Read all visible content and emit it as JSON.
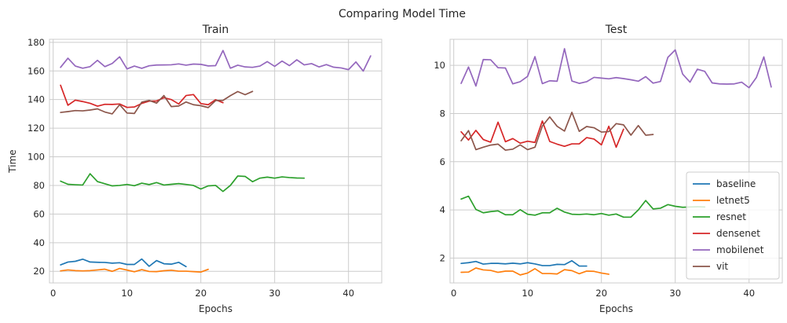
{
  "suptitle": "Comparing Model Time",
  "legend_location": "lower-right",
  "colors": {
    "baseline": "#1f77b4",
    "letnet5": "#ff7f0e",
    "resnet": "#2ca02c",
    "densenet": "#d62728",
    "mobilenet": "#9467bd",
    "vit": "#8c564b",
    "grid": "#cccccc",
    "spine": "#cccccc",
    "legend_frame": "#cccccc"
  },
  "chart_data": [
    {
      "type": "line",
      "title": "Train",
      "xlabel": "Epochs",
      "ylabel": "Time",
      "xlim": [
        -0.5,
        44.5
      ],
      "ylim": [
        11.9,
        182.1
      ],
      "xticks": [
        0,
        10,
        20,
        30,
        40
      ],
      "yticks": [
        20,
        40,
        60,
        80,
        100,
        120,
        140,
        160,
        180
      ],
      "grid": true,
      "legend": false,
      "series": [
        {
          "name": "baseline",
          "x": [
            1,
            2,
            3,
            4,
            5,
            6,
            7,
            8,
            9,
            10,
            11,
            12,
            13,
            14,
            15,
            16,
            17,
            18
          ],
          "y": [
            24.5,
            26.5,
            27,
            28.5,
            26.5,
            26.3,
            26.2,
            25.7,
            26,
            24.8,
            24.8,
            28.6,
            23.5,
            27.5,
            25.3,
            25,
            26.3,
            23.3
          ]
        },
        {
          "name": "letnet5",
          "x": [
            1,
            2,
            3,
            4,
            5,
            6,
            7,
            8,
            9,
            10,
            11,
            12,
            13,
            14,
            15,
            16,
            17,
            18,
            19,
            20,
            21
          ],
          "y": [
            20.3,
            21,
            20.5,
            20.3,
            20.5,
            21,
            21.5,
            20,
            22,
            20.9,
            19.7,
            21.2,
            19.9,
            19.8,
            20.4,
            20.8,
            20.1,
            20.1,
            19.8,
            19.5,
            21.4
          ]
        },
        {
          "name": "resnet",
          "x": [
            1,
            2,
            3,
            4,
            5,
            6,
            7,
            8,
            9,
            10,
            11,
            12,
            13,
            14,
            15,
            16,
            17,
            18,
            19,
            20,
            21,
            22,
            23,
            24,
            25,
            26,
            27,
            28,
            29,
            30,
            31,
            32,
            33,
            34
          ],
          "y": [
            83,
            80.8,
            80.5,
            80.3,
            88.2,
            82.7,
            81.2,
            79.7,
            80,
            80.7,
            79.8,
            81.6,
            80.6,
            82,
            80.3,
            80.8,
            81.3,
            80.7,
            80,
            77.5,
            79.7,
            80,
            75.8,
            80,
            86.6,
            86.3,
            82.6,
            85.1,
            85.8,
            85.1,
            86,
            85.5,
            85.2,
            85.1
          ]
        },
        {
          "name": "densenet",
          "x": [
            1,
            2,
            3,
            4,
            5,
            6,
            7,
            8,
            9,
            10,
            11,
            12,
            13,
            14,
            15,
            16,
            17,
            18,
            19,
            20,
            21,
            22,
            23
          ],
          "y": [
            150,
            136,
            139.6,
            138.6,
            137.4,
            135.4,
            136.7,
            136.6,
            136.9,
            134.5,
            134.8,
            137.3,
            138.9,
            139,
            141.3,
            140,
            136.9,
            142.8,
            143.5,
            137.2,
            136.4,
            139.9,
            137.8
          ]
        },
        {
          "name": "mobilenet",
          "x": [
            1,
            2,
            3,
            4,
            5,
            6,
            7,
            8,
            9,
            10,
            11,
            12,
            13,
            14,
            15,
            16,
            17,
            18,
            19,
            20,
            21,
            22,
            23,
            24,
            25,
            26,
            27,
            28,
            29,
            30,
            31,
            32,
            33,
            34,
            35,
            36,
            37,
            38,
            39,
            40,
            41,
            42,
            43
          ],
          "y": [
            162.5,
            168.9,
            163.4,
            161.9,
            163,
            167.4,
            163,
            165.2,
            169.9,
            161.4,
            163.4,
            161.8,
            163.6,
            164.1,
            164.2,
            164.3,
            164.9,
            164,
            164.8,
            164.6,
            163.5,
            163.7,
            174.3,
            161.9,
            164,
            162.8,
            162.5,
            163.4,
            166.5,
            163.2,
            166.9,
            163.7,
            167.8,
            164.2,
            165.1,
            162.8,
            164.4,
            162.6,
            162.1,
            160.9,
            166.3,
            159.9,
            170.5
          ]
        },
        {
          "name": "vit",
          "x": [
            1,
            2,
            3,
            4,
            5,
            6,
            7,
            8,
            9,
            10,
            11,
            12,
            13,
            14,
            15,
            16,
            17,
            18,
            19,
            20,
            21,
            22,
            23,
            24,
            25,
            26,
            27
          ],
          "y": [
            131,
            131.6,
            132.3,
            132.1,
            132.7,
            133.5,
            131.3,
            130,
            136.4,
            130.6,
            130.3,
            138.2,
            139.4,
            137.5,
            142.8,
            135.1,
            135.5,
            138.3,
            136.4,
            135.7,
            134.4,
            139.3,
            139.4,
            142.7,
            145.6,
            143.4,
            145.7
          ]
        }
      ]
    },
    {
      "type": "line",
      "title": "Test",
      "xlabel": "Epochs",
      "ylabel": "",
      "xlim": [
        -0.5,
        44.5
      ],
      "ylim": [
        0.97,
        11.08
      ],
      "xticks": [
        0,
        10,
        20,
        30,
        40
      ],
      "yticks": [
        2,
        4,
        6,
        8,
        10
      ],
      "grid": true,
      "legend": true,
      "series": [
        {
          "name": "baseline",
          "x": [
            1,
            2,
            3,
            4,
            5,
            6,
            7,
            8,
            9,
            10,
            11,
            12,
            13,
            14,
            15,
            16,
            17,
            18
          ],
          "y": [
            1.78,
            1.81,
            1.86,
            1.75,
            1.78,
            1.78,
            1.76,
            1.79,
            1.76,
            1.81,
            1.76,
            1.69,
            1.69,
            1.74,
            1.73,
            1.89,
            1.67,
            1.67
          ]
        },
        {
          "name": "letnet5",
          "x": [
            1,
            2,
            3,
            4,
            5,
            6,
            7,
            8,
            9,
            10,
            11,
            12,
            13,
            14,
            15,
            16,
            17,
            18,
            19,
            20,
            21
          ],
          "y": [
            1.41,
            1.42,
            1.59,
            1.51,
            1.49,
            1.41,
            1.46,
            1.46,
            1.3,
            1.38,
            1.56,
            1.36,
            1.36,
            1.34,
            1.52,
            1.48,
            1.35,
            1.46,
            1.45,
            1.38,
            1.33
          ]
        },
        {
          "name": "resnet",
          "x": [
            1,
            2,
            3,
            4,
            5,
            6,
            7,
            8,
            9,
            10,
            11,
            12,
            13,
            14,
            15,
            16,
            17,
            18,
            19,
            20,
            21,
            22,
            23,
            24,
            25,
            26,
            27,
            28,
            29,
            30,
            31,
            32,
            33,
            34
          ],
          "y": [
            4.45,
            4.57,
            4.02,
            3.88,
            3.93,
            3.96,
            3.8,
            3.8,
            4.01,
            3.82,
            3.78,
            3.88,
            3.88,
            4.07,
            3.91,
            3.82,
            3.81,
            3.83,
            3.8,
            3.85,
            3.78,
            3.83,
            3.7,
            3.7,
            4.0,
            4.39,
            4.04,
            4.07,
            4.22,
            4.15,
            4.11,
            4.12,
            4.13,
            4.12
          ]
        },
        {
          "name": "densenet",
          "x": [
            1,
            2,
            3,
            4,
            5,
            6,
            7,
            8,
            9,
            10,
            11,
            12,
            13,
            14,
            15,
            16,
            17,
            18,
            19,
            20,
            21,
            22,
            23
          ],
          "y": [
            7.24,
            6.9,
            7.3,
            6.92,
            6.81,
            7.64,
            6.83,
            6.96,
            6.77,
            6.85,
            6.8,
            7.69,
            6.84,
            6.73,
            6.64,
            6.74,
            6.74,
            7.0,
            6.94,
            6.7,
            7.47,
            6.6,
            7.35
          ]
        },
        {
          "name": "mobilenet",
          "x": [
            1,
            2,
            3,
            4,
            5,
            6,
            7,
            8,
            9,
            10,
            11,
            12,
            13,
            14,
            15,
            16,
            17,
            18,
            19,
            20,
            21,
            22,
            23,
            24,
            25,
            26,
            27,
            28,
            29,
            30,
            31,
            32,
            33,
            34,
            35,
            36,
            37,
            38,
            39,
            40,
            41,
            42,
            43
          ],
          "y": [
            9.25,
            9.93,
            9.14,
            10.24,
            10.23,
            9.9,
            9.89,
            9.23,
            9.32,
            9.54,
            10.36,
            9.24,
            9.36,
            9.34,
            10.69,
            9.35,
            9.25,
            9.32,
            9.5,
            9.47,
            9.44,
            9.49,
            9.45,
            9.4,
            9.34,
            9.53,
            9.26,
            9.33,
            10.33,
            10.64,
            9.64,
            9.3,
            9.84,
            9.75,
            9.27,
            9.23,
            9.22,
            9.23,
            9.3,
            9.07,
            9.5,
            10.35,
            9.1
          ]
        },
        {
          "name": "vit",
          "x": [
            1,
            2,
            3,
            4,
            5,
            6,
            7,
            8,
            9,
            10,
            11,
            12,
            13,
            14,
            15,
            16,
            17,
            18,
            19,
            20,
            21,
            22,
            23,
            24,
            25,
            26,
            27
          ],
          "y": [
            6.87,
            7.29,
            6.5,
            6.6,
            6.69,
            6.73,
            6.48,
            6.52,
            6.7,
            6.5,
            6.6,
            7.48,
            7.86,
            7.47,
            7.27,
            8.05,
            7.26,
            7.46,
            7.41,
            7.23,
            7.25,
            7.58,
            7.53,
            7.1,
            7.5,
            7.1,
            7.13
          ]
        }
      ]
    }
  ]
}
